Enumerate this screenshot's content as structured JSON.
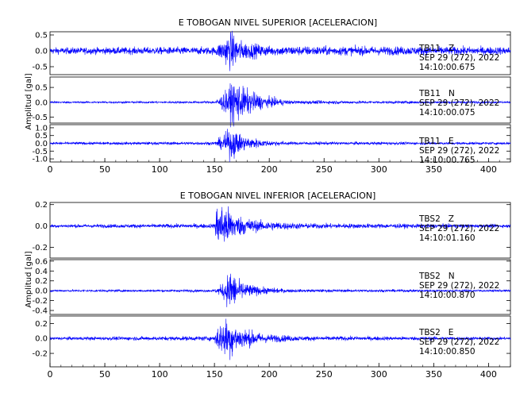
{
  "chart_data": [
    {
      "type": "line",
      "title": "E TOBOGAN NIVEL SUPERIOR [ACELERACION]",
      "ylabel": "Amplitud [gal]",
      "xlabel": "",
      "xlim": [
        0,
        420
      ],
      "xticks": [
        0,
        50,
        100,
        150,
        200,
        250,
        300,
        350,
        400
      ],
      "series_color": "#0000ff",
      "panels": [
        {
          "name": "TB11 Z",
          "label_line1": "TB11   Z",
          "label_line2": "SEP 29 (272), 2022",
          "label_line3": "14:10:00.675",
          "ylim": [
            -0.75,
            0.6
          ],
          "yticks": [
            "0.5",
            "0.0",
            "-0.5"
          ],
          "ytick_values": [
            0.5,
            0.0,
            -0.5
          ],
          "noise": 0.12,
          "peak": 0.6,
          "onset": 152,
          "decay": 14,
          "envelope": [
            [
              0,
              0.1
            ],
            [
              150,
              0.12
            ],
            [
              158,
              0.35
            ],
            [
              165,
              0.6
            ],
            [
              175,
              0.3
            ],
            [
              200,
              0.15
            ],
            [
              420,
              0.12
            ]
          ]
        },
        {
          "name": "TB11 N",
          "label_line1": "TB11   N",
          "label_line2": "SEP 29 (272), 2022",
          "label_line3": "14:10:00.075",
          "ylim": [
            -0.7,
            0.85
          ],
          "yticks": [
            "0.5",
            "0.0",
            "-0.5"
          ],
          "ytick_values": [
            0.5,
            0.0,
            -0.5
          ],
          "envelope": [
            [
              0,
              0.03
            ],
            [
              150,
              0.04
            ],
            [
              160,
              0.35
            ],
            [
              168,
              0.75
            ],
            [
              178,
              0.45
            ],
            [
              195,
              0.2
            ],
            [
              220,
              0.06
            ],
            [
              420,
              0.03
            ]
          ]
        },
        {
          "name": "TB11 E",
          "label_line1": "TB11   E",
          "label_line2": "SEP 29 (272), 2022",
          "label_line3": "14:10:00.765",
          "ylim": [
            -1.2,
            1.2
          ],
          "yticks": [
            "1.0",
            "0.5",
            "0.0",
            "-0.5",
            "-1.0"
          ],
          "ytick_values": [
            1.0,
            0.5,
            0.0,
            -0.5,
            -1.0
          ],
          "envelope": [
            [
              0,
              0.08
            ],
            [
              150,
              0.1
            ],
            [
              158,
              0.5
            ],
            [
              165,
              1.05
            ],
            [
              175,
              0.5
            ],
            [
              195,
              0.2
            ],
            [
              220,
              0.1
            ],
            [
              420,
              0.08
            ]
          ]
        }
      ]
    },
    {
      "type": "line",
      "title": "E TOBOGAN NIVEL INFERIOR [ACELERACION]",
      "ylabel": "Amplitud [gal]",
      "xlabel": "",
      "xlim": [
        0,
        420
      ],
      "xticks": [
        0,
        50,
        100,
        150,
        200,
        250,
        300,
        350,
        400
      ],
      "series_color": "#0000ff",
      "panels": [
        {
          "name": "TBS2 Z",
          "label_line1": "TBS2   Z",
          "label_line2": "SEP 29 (272), 2022",
          "label_line3": "14:10:01.160",
          "ylim": [
            -0.3,
            0.22
          ],
          "yticks": [
            "0.2",
            "0.0",
            "-0.2"
          ],
          "ytick_values": [
            0.2,
            0.0,
            -0.2
          ],
          "envelope": [
            [
              0,
              0.015
            ],
            [
              150,
              0.02
            ],
            [
              152,
              0.2
            ],
            [
              160,
              0.2
            ],
            [
              170,
              0.1
            ],
            [
              190,
              0.05
            ],
            [
              230,
              0.025
            ],
            [
              420,
              0.015
            ]
          ]
        },
        {
          "name": "TBS2 N",
          "label_line1": "TBS2   N",
          "label_line2": "SEP 29 (272), 2022",
          "label_line3": "14:10:00.870",
          "ylim": [
            -0.48,
            0.63
          ],
          "yticks": [
            "0.6",
            "0.4",
            "0.2",
            "0.0",
            "-0.2",
            "-0.4"
          ],
          "ytick_values": [
            0.6,
            0.4,
            0.2,
            0.0,
            -0.2,
            -0.4
          ],
          "envelope": [
            [
              0,
              0.02
            ],
            [
              150,
              0.025
            ],
            [
              158,
              0.15
            ],
            [
              165,
              0.45
            ],
            [
              172,
              0.2
            ],
            [
              190,
              0.08
            ],
            [
              220,
              0.03
            ],
            [
              420,
              0.02
            ]
          ]
        },
        {
          "name": "TBS2 E",
          "label_line1": "TBS2   E",
          "label_line2": "SEP 29 (272), 2022",
          "label_line3": "14:10:00.850",
          "ylim": [
            -0.38,
            0.3
          ],
          "yticks": [
            "0.2",
            "0.0",
            "-0.2"
          ],
          "ytick_values": [
            0.2,
            0.0,
            -0.2
          ],
          "envelope": [
            [
              0,
              0.02
            ],
            [
              150,
              0.03
            ],
            [
              152,
              0.15
            ],
            [
              162,
              0.28
            ],
            [
              172,
              0.15
            ],
            [
              195,
              0.06
            ],
            [
              230,
              0.03
            ],
            [
              420,
              0.02
            ]
          ]
        }
      ]
    }
  ]
}
